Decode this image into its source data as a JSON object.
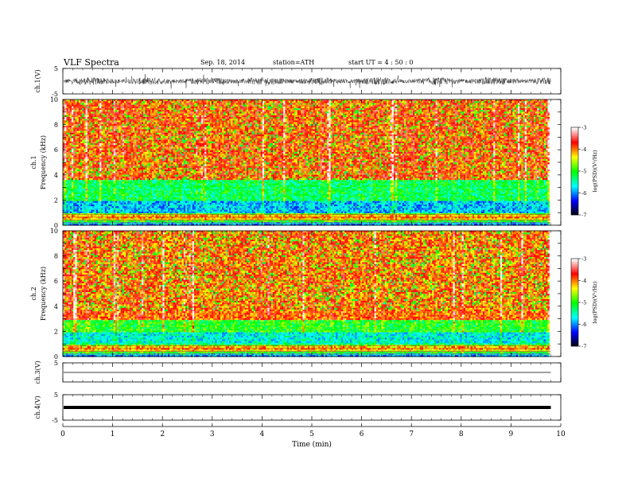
{
  "header": {
    "title": "VLF  Spectra",
    "date": "Sep. 18, 2014",
    "station": "station=ATH",
    "start_ut": "start  UT  =   4  : 50 : 0"
  },
  "chart_data": [
    {
      "type": "line",
      "panel": "ch1-waveform",
      "ylabel": "ch.1(V)",
      "ylim": [
        -5,
        5
      ],
      "yticks": [
        -5,
        5
      ],
      "xlim": [
        0,
        10
      ],
      "description_values": {
        "amplitude_typical": 1.5,
        "amplitude_peak": 3
      }
    },
    {
      "type": "heatmap",
      "panel": "ch1-spectrogram",
      "ylabel_line1": "ch.1",
      "ylabel_line2": "Frequency  (kHz)",
      "ylim": [
        0,
        10
      ],
      "yticks": [
        0,
        2,
        4,
        6,
        8,
        10
      ],
      "xlim": [
        0,
        9.8
      ],
      "colorbar": {
        "label": "log(PSD)(V²/Hz)",
        "range": [
          -7,
          -3
        ],
        "ticks": [
          -7,
          -6,
          -5,
          -4,
          -3
        ]
      },
      "bands": [
        {
          "from_khz": 0,
          "to_khz": 1.0,
          "level": "mixed striations"
        },
        {
          "from_khz": 1.0,
          "to_khz": 2.0,
          "level": -5.8
        },
        {
          "from_khz": 2.0,
          "to_khz": 3.6,
          "level": -5.2
        },
        {
          "from_khz": 3.6,
          "to_khz": 10,
          "level": -3.8
        }
      ]
    },
    {
      "type": "heatmap",
      "panel": "ch2-spectrogram",
      "ylabel_line1": "ch.2",
      "ylabel_line2": "Frequency  (kHz)",
      "ylim": [
        0,
        10
      ],
      "yticks": [
        0,
        2,
        4,
        6,
        8,
        10
      ],
      "xlim": [
        0,
        9.8
      ],
      "colorbar": {
        "label": "log(PSD)(V²/Hz)",
        "range": [
          -7,
          -3
        ],
        "ticks": [
          -7,
          -6,
          -5,
          -4,
          -3
        ]
      },
      "bands": [
        {
          "from_khz": 0,
          "to_khz": 1.1,
          "level": "mixed striations"
        },
        {
          "from_khz": 1.1,
          "to_khz": 2.0,
          "level": -5.6
        },
        {
          "from_khz": 2.0,
          "to_khz": 3.0,
          "level": -5.0
        },
        {
          "from_khz": 3.0,
          "to_khz": 10,
          "level": -3.9
        }
      ]
    },
    {
      "type": "line",
      "panel": "ch3-waveform",
      "ylabel": "ch.3(V)",
      "ylim": [
        -5,
        5
      ],
      "yticks": [
        5
      ],
      "values_constant": 0
    },
    {
      "type": "line",
      "panel": "ch4-waveform",
      "ylabel": "ch.4(V)",
      "ylim": [
        -5,
        5
      ],
      "yticks": [
        -5,
        5
      ],
      "values_constant": 0
    }
  ],
  "xaxis": {
    "label": "Time  (min)",
    "ticks": [
      "0",
      "1",
      "2",
      "3",
      "4",
      "5",
      "6",
      "7",
      "8",
      "9",
      "10"
    ],
    "range": [
      0,
      10
    ]
  },
  "colors": {
    "scale": [
      "#000000",
      "#0000ff",
      "#00ffff",
      "#00ff00",
      "#ffff00",
      "#ff0000",
      "#ffffff"
    ]
  }
}
